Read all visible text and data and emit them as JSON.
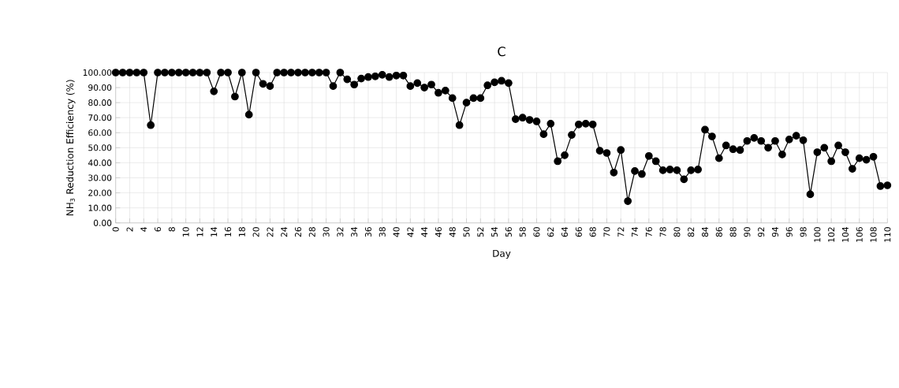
{
  "chart_data": {
    "type": "line",
    "title": "C",
    "xlabel": "Day",
    "ylabel": "NH$_{3}$ Reduction Efficiency (%)",
    "x": [
      0,
      1,
      2,
      3,
      4,
      5,
      6,
      7,
      8,
      9,
      10,
      11,
      12,
      13,
      14,
      15,
      16,
      17,
      18,
      19,
      20,
      21,
      22,
      23,
      24,
      25,
      26,
      27,
      28,
      29,
      30,
      31,
      32,
      33,
      34,
      35,
      36,
      37,
      38,
      39,
      40,
      41,
      42,
      43,
      44,
      45,
      46,
      47,
      48,
      49,
      50,
      51,
      52,
      53,
      54,
      55,
      56,
      57,
      58,
      59,
      60,
      61,
      62,
      63,
      64,
      65,
      66,
      67,
      68,
      69,
      70,
      71,
      72,
      73,
      74,
      75,
      76,
      77,
      78,
      79,
      80,
      81,
      82,
      83,
      84,
      85,
      86,
      87,
      88,
      89,
      90,
      91,
      92,
      93,
      94,
      95,
      96,
      97,
      98,
      99,
      100,
      101,
      102,
      103,
      104,
      105,
      106,
      107,
      108,
      109,
      110
    ],
    "series": [
      {
        "color": "#000000",
        "values": [
          100,
          100,
          100,
          100,
          100,
          65,
          100,
          100,
          100,
          100,
          100,
          100,
          100,
          100,
          87.5,
          100,
          100,
          84,
          100,
          72,
          100,
          92.5,
          91,
          100,
          100,
          100,
          100,
          100,
          100,
          100,
          100,
          91,
          100,
          95.5,
          92,
          96,
          97,
          97.5,
          98.5,
          97,
          98,
          98,
          91,
          93,
          90,
          92,
          86.5,
          88,
          83,
          65,
          80,
          83,
          83,
          91.5,
          93.5,
          94.5,
          93,
          69,
          70,
          68.5,
          67.5,
          59,
          66,
          41,
          45,
          58.5,
          65.5,
          66,
          65.5,
          48,
          46.5,
          33.5,
          48.5,
          14.5,
          34.5,
          32.5,
          44.5,
          41,
          35,
          35.5,
          35,
          29,
          35,
          35.5,
          62,
          57.5,
          43,
          51.5,
          49,
          48.5,
          54.5,
          56.5,
          54.5,
          50,
          54.5,
          45.5,
          55.5,
          58,
          55,
          19,
          47,
          50,
          41,
          51.5,
          47,
          36,
          43,
          42,
          44,
          24.5,
          25
        ]
      }
    ],
    "xlim": [
      0,
      110
    ],
    "xticks": [
      0,
      2,
      4,
      6,
      8,
      10,
      12,
      14,
      16,
      18,
      20,
      22,
      24,
      26,
      28,
      30,
      32,
      34,
      36,
      38,
      40,
      42,
      44,
      46,
      48,
      50,
      52,
      54,
      56,
      58,
      60,
      62,
      64,
      66,
      68,
      70,
      72,
      74,
      76,
      78,
      80,
      82,
      84,
      86,
      88,
      90,
      92,
      94,
      96,
      98,
      100,
      102,
      104,
      106,
      108,
      110
    ],
    "ylim": [
      0,
      100
    ],
    "yticks": [
      {
        "value": 0,
        "label": "0.00"
      },
      {
        "value": 10,
        "label": "10.00"
      },
      {
        "value": 20,
        "label": "20.00"
      },
      {
        "value": 30,
        "label": "30.00"
      },
      {
        "value": 40,
        "label": "40.00"
      },
      {
        "value": 50,
        "label": "50.00"
      },
      {
        "value": 60,
        "label": "60.00"
      },
      {
        "value": 70,
        "label": "70.00"
      },
      {
        "value": 80,
        "label": "80.00"
      },
      {
        "value": 90,
        "label": "90.00"
      },
      {
        "value": 100,
        "label": "100.00"
      }
    ],
    "grid": true,
    "marker": "circle",
    "line_style": "solid"
  }
}
